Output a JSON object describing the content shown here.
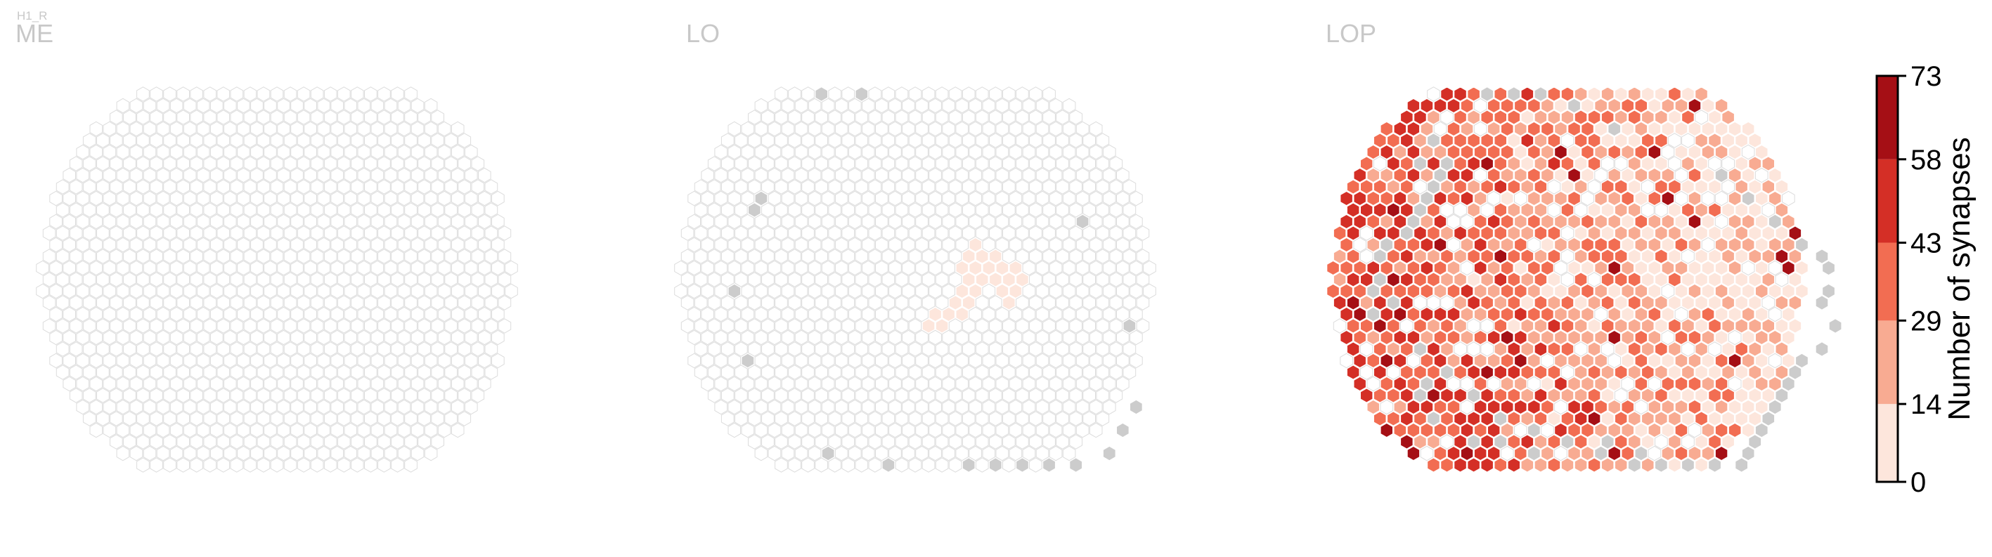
{
  "chart_data": {
    "type": "heatmap",
    "figure_label": "H1_R",
    "panels": [
      {
        "title": "ME",
        "filled_cells": [],
        "edge_cells": []
      },
      {
        "title": "LO",
        "filled_cells": [
          {
            "hex": [
              6,
              -3
            ],
            "v": 5
          },
          {
            "hex": [
              5,
              -2
            ],
            "v": 5
          },
          {
            "hex": [
              6,
              -2
            ],
            "v": 5
          },
          {
            "hex": [
              7,
              -2
            ],
            "v": 5
          },
          {
            "hex": [
              4,
              -1
            ],
            "v": 5
          },
          {
            "hex": [
              5,
              -1
            ],
            "v": 5
          },
          {
            "hex": [
              6,
              -1
            ],
            "v": 5
          },
          {
            "hex": [
              7,
              -1
            ],
            "v": 5
          },
          {
            "hex": [
              8,
              -1
            ],
            "v": 5
          },
          {
            "hex": [
              4,
              0
            ],
            "v": 5
          },
          {
            "hex": [
              5,
              0
            ],
            "v": 5
          },
          {
            "hex": [
              6,
              0
            ],
            "v": 5
          },
          {
            "hex": [
              7,
              0
            ],
            "v": 5
          },
          {
            "hex": [
              8,
              0
            ],
            "v": 5
          },
          {
            "hex": [
              3,
              1
            ],
            "v": 5
          },
          {
            "hex": [
              4,
              1
            ],
            "v": 5
          },
          {
            "hex": [
              6,
              1
            ],
            "v": 5
          },
          {
            "hex": [
              7,
              1
            ],
            "v": 5
          },
          {
            "hex": [
              2,
              2
            ],
            "v": 5
          },
          {
            "hex": [
              3,
              2
            ],
            "v": 5
          },
          {
            "hex": [
              6,
              2
            ],
            "v": 5
          },
          {
            "hex": [
              0,
              3
            ],
            "v": 5
          },
          {
            "hex": [
              1,
              3
            ],
            "v": 5
          },
          {
            "hex": [
              2,
              3
            ],
            "v": 5
          },
          {
            "hex": [
              -1,
              4
            ],
            "v": 5
          },
          {
            "hex": [
              0,
              4
            ],
            "v": 5
          }
        ],
        "edge_cells": [
          [
            1,
            -16
          ],
          [
            -8,
            -7
          ],
          [
            -9,
            -6
          ],
          [
            -14,
            1
          ],
          [
            -16,
            7
          ],
          [
            4,
            -16
          ],
          [
            -14,
            15
          ],
          [
            15,
            -5
          ],
          [
            14,
            4
          ],
          [
            11,
            11
          ],
          [
            9,
            13
          ],
          [
            7,
            15
          ],
          [
            4,
            16
          ],
          [
            -4,
            16
          ],
          [
            -2,
            16
          ],
          [
            0,
            16
          ],
          [
            2,
            16
          ],
          [
            -10,
            16
          ]
        ]
      },
      {
        "title": "LOP",
        "filled_cells": [],
        "edge_cells": [
          [
            -10,
            -4
          ],
          [
            -9,
            -5
          ],
          [
            -8,
            -6
          ],
          [
            -7,
            -7
          ],
          [
            -6,
            -8
          ],
          [
            -5,
            -9
          ],
          [
            -4,
            -10
          ],
          [
            -12,
            -3
          ],
          [
            -13,
            -2
          ],
          [
            -14,
            0
          ],
          [
            -15,
            1
          ],
          [
            -16,
            3
          ],
          [
            -14,
            2
          ],
          [
            -6,
            -10
          ],
          [
            -4,
            -12
          ],
          [
            2,
            -16
          ],
          [
            4,
            -16
          ],
          [
            6,
            -16
          ],
          [
            8,
            -15
          ],
          [
            10,
            -13
          ],
          [
            16,
            -9
          ],
          [
            17,
            -7
          ],
          [
            18,
            -5
          ],
          [
            19,
            -3
          ],
          [
            20,
            -2
          ],
          [
            20,
            -1
          ],
          [
            19,
            1
          ],
          [
            18,
            2
          ],
          [
            18,
            4
          ],
          [
            16,
            6
          ],
          [
            14,
            7
          ],
          [
            13,
            8
          ],
          [
            12,
            9
          ],
          [
            11,
            10
          ],
          [
            10,
            11
          ],
          [
            9,
            12
          ],
          [
            8,
            13
          ],
          [
            7,
            14
          ],
          [
            6,
            15
          ],
          [
            5,
            16
          ],
          [
            3,
            16
          ],
          [
            1,
            16
          ],
          [
            -1,
            16
          ],
          [
            -3,
            16
          ],
          [
            -5,
            15
          ],
          [
            -7,
            14
          ],
          [
            -9,
            13
          ],
          [
            -11,
            12
          ],
          [
            -12,
            10
          ],
          [
            -13,
            8
          ],
          [
            -14,
            6
          ],
          [
            -15,
            9
          ],
          [
            -16,
            10
          ],
          [
            -16,
            12
          ],
          [
            -14,
            14
          ],
          [
            -12,
            14
          ],
          [
            -10,
            15
          ],
          [
            -2,
            15
          ],
          [
            -4,
            14
          ]
        ]
      }
    ],
    "colorbar": {
      "label": "Number of synapses",
      "ticks": [
        0,
        14,
        29,
        43,
        58,
        73
      ],
      "range": [
        0,
        73
      ],
      "bins": [
        {
          "from": 0,
          "to": 14,
          "color": "#fde6dc"
        },
        {
          "from": 14,
          "to": 29,
          "color": "#f8ab92"
        },
        {
          "from": 29,
          "to": 43,
          "color": "#f26d52"
        },
        {
          "from": 43,
          "to": 58,
          "color": "#d42f26"
        },
        {
          "from": 58,
          "to": 73,
          "color": "#a50f15"
        }
      ]
    },
    "colors": {
      "empty_cell_stroke": "#dcdcdc",
      "edge_cell_fill": "#cccccc",
      "title_color": "#c8c8c8"
    }
  }
}
